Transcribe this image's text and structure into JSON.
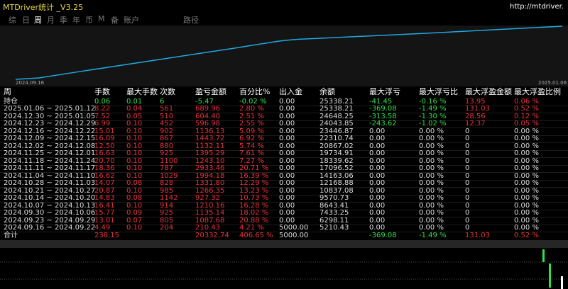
{
  "header": {
    "title": "MTDriver统计 _V3.25",
    "url": "http://mtdriver.",
    "tabs": [
      "综",
      "日",
      "周",
      "月",
      "季",
      "年",
      "币",
      "M",
      "备",
      "账户",
      "路径"
    ],
    "selected_tab": 2
  },
  "chart": {
    "start_label": "2024.09.16",
    "end_label": "2025.01.06"
  },
  "table": {
    "header": [
      "周",
      "手数",
      "最大手数",
      "次数",
      "盈亏金额",
      "百分比%",
      "出入金",
      "余额",
      "最大浮亏",
      "最大浮亏比",
      "最大浮盈金额",
      "最大浮盈比例"
    ],
    "rows": [
      [
        "持仓",
        "0.06",
        "0.01",
        "6",
        "-5.47",
        "-0.02 %",
        "0.00",
        "25338.21",
        "-41.45",
        "-0.16 %",
        "13.95",
        "0.06 %"
      ],
      [
        "2025.01.06 ~ 2025.01.12",
        "8.22",
        "0.04",
        "561",
        "689.96",
        "2.80 %",
        "0.00",
        "25338.21",
        "-369.08",
        "-1.49 %",
        "131.03",
        "0.52 %"
      ],
      [
        "2024.12.30 ~ 2025.01.05",
        "7.52",
        "0.05",
        "510",
        "604.40",
        "2.51 %",
        "0.00",
        "24648.25",
        "-313.58",
        "-1.30 %",
        "28.56",
        "0.12 %"
      ],
      [
        "2024.12.23 ~ 2024.12.29",
        "6.99",
        "0.10",
        "452",
        "596.98",
        "2.55 %",
        "0.00",
        "24043.85",
        "-243.62",
        "-1.02 %",
        "12.37",
        "0.05 %"
      ],
      [
        "2024.12.16 ~ 2024.12.22",
        "15.01",
        "0.10",
        "902",
        "1136.13",
        "5.09 %",
        "0.00",
        "23446.87",
        "0.00",
        "0.00 %",
        "0",
        "0.00 %"
      ],
      [
        "2024.12.09 ~ 2024.12.15",
        "16.09",
        "0.10",
        "867",
        "1443.72",
        "6.92 %",
        "0.00",
        "22310.74",
        "0.00",
        "0.00 %",
        "0",
        "0.00 %"
      ],
      [
        "2024.12.02 ~ 2024.12.08",
        "12.50",
        "0.10",
        "880",
        "1132.11",
        "5.74 %",
        "0.00",
        "20867.02",
        "0.00",
        "0.00 %",
        "0",
        "0.00 %"
      ],
      [
        "2024.11.25 ~ 2024.12.01",
        "16.63",
        "0.10",
        "925",
        "1395.29",
        "7.61 %",
        "0.00",
        "19734.91",
        "0.00",
        "0.00 %",
        "0",
        "0.00 %"
      ],
      [
        "2024.11.18 ~ 2024.11.24",
        "20.70",
        "0.10",
        "1100",
        "1243.10",
        "7.27 %",
        "0.00",
        "18339.62",
        "0.00",
        "0.00 %",
        "0",
        "0.00 %"
      ],
      [
        "2024.11.11 ~ 2024.11.17",
        "18.36",
        "0.10",
        "787",
        "2933.46",
        "20.71 %",
        "0.00",
        "17096.52",
        "0.00",
        "0.00 %",
        "0",
        "0.00 %"
      ],
      [
        "2024.11.04 ~ 2024.11.10",
        "16.62",
        "0.10",
        "1029",
        "1994.18",
        "16.39 %",
        "0.00",
        "14163.06",
        "0.00",
        "0.00 %",
        "0",
        "0.00 %"
      ],
      [
        "2024.10.28 ~ 2024.11.03",
        "14.07",
        "0.08",
        "828",
        "1331.80",
        "12.29 %",
        "0.00",
        "12168.88",
        "0.00",
        "0.00 %",
        "0",
        "0.00 %"
      ],
      [
        "2024.10.21 ~ 2024.10.27",
        "20.87",
        "0.10",
        "985",
        "1266.35",
        "13.23 %",
        "0.00",
        "10837.08",
        "0.00",
        "0.00 %",
        "0",
        "0.00 %"
      ],
      [
        "2024.10.14 ~ 2024.10.20",
        "14.83",
        "0.08",
        "1142",
        "927.32",
        "10.73 %",
        "0.00",
        "9570.73",
        "0.00",
        "0.00 %",
        "0",
        "0.00 %"
      ],
      [
        "2024.10.07 ~ 2024.10.13",
        "16.41",
        "0.10",
        "914",
        "1210.16",
        "16.28 %",
        "0.00",
        "8643.41",
        "0.00",
        "0.00 %",
        "0",
        "0.00 %"
      ],
      [
        "2024.09.30 ~ 2024.10.06",
        "15.77",
        "0.09",
        "925",
        "1135.14",
        "18.02 %",
        "0.00",
        "7433.25",
        "0.00",
        "0.00 %",
        "0",
        "0.00 %"
      ],
      [
        "2024.09.23 ~ 2024.09.29",
        "13.01",
        "0.07",
        "805",
        "1087.68",
        "20.88 %",
        "0.00",
        "6298.11",
        "0.00",
        "0.00 %",
        "0",
        "0.00 %"
      ],
      [
        "2024.09.16 ~ 2024.09.22",
        "4.49",
        "0.10",
        "204",
        "210.43",
        "4.21 %",
        "5000.00",
        "5210.43",
        "0.00",
        "0.00 %",
        "0",
        "0.00 %"
      ]
    ],
    "total": [
      "合计",
      "238.15",
      null,
      null,
      "20332.74",
      "406.65 %",
      "5000.00",
      null,
      "-369.08",
      "-1.49 %",
      "131.03",
      "0.52 %"
    ]
  }
}
